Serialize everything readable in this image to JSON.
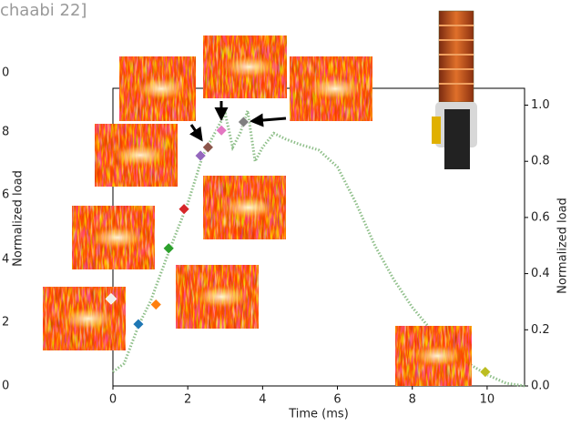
{
  "chart_data": {
    "type": "line",
    "title": "chaabi 22]",
    "x_label": "Time (ms)",
    "y_label": "Normalized load",
    "y2_label": "Normalized load",
    "left_tick_labels": [
      "0",
      "8",
      "6",
      "4",
      "2",
      "0"
    ],
    "xlim": [
      0,
      11
    ],
    "ylim": [
      0,
      1.06
    ],
    "xticks": [
      0,
      2,
      4,
      6,
      8,
      10
    ],
    "yticks": [
      {
        "value": 0,
        "label": "0.0"
      },
      {
        "value": 0.2,
        "label": "0.2"
      },
      {
        "value": 0.4,
        "label": "0.4"
      },
      {
        "value": 0.6,
        "label": "0.6"
      },
      {
        "value": 0.8,
        "label": "0.8"
      },
      {
        "value": 1.0,
        "label": "1.0"
      }
    ],
    "curve": {
      "color": "#8fbf8a",
      "x": [
        0,
        0.3,
        0.5,
        0.7,
        1,
        1.5,
        2,
        2.4,
        2.8,
        3.0,
        3.2,
        3.4,
        3.6,
        3.8,
        4,
        4.3,
        4.6,
        5,
        5.5,
        6,
        6.5,
        7,
        7.5,
        8,
        8.5,
        9,
        9.5,
        10,
        10.5,
        11
      ],
      "values": [
        0.05,
        0.08,
        0.15,
        0.22,
        0.3,
        0.48,
        0.65,
        0.82,
        0.92,
        0.97,
        0.85,
        0.9,
        0.98,
        0.8,
        0.85,
        0.9,
        0.88,
        0.86,
        0.84,
        0.78,
        0.65,
        0.5,
        0.38,
        0.28,
        0.2,
        0.13,
        0.08,
        0.04,
        0.01,
        0
      ]
    },
    "markers": {
      "x": [
        -0.05,
        0.68,
        1.15,
        1.49,
        1.9,
        2.34,
        2.54,
        2.9,
        3.49,
        9.95
      ],
      "values": [
        0.31,
        0.22,
        0.29,
        0.49,
        0.63,
        0.82,
        0.85,
        0.91,
        0.94,
        0.05
      ],
      "colors": [
        "#eeeeee",
        "#1f77b4",
        "#ff7f0e",
        "#2ca02c",
        "#d62728",
        "#9467bd",
        "#8c564b",
        "#e377c2",
        "#7f7f7f",
        "#bcbd22"
      ]
    }
  }
}
